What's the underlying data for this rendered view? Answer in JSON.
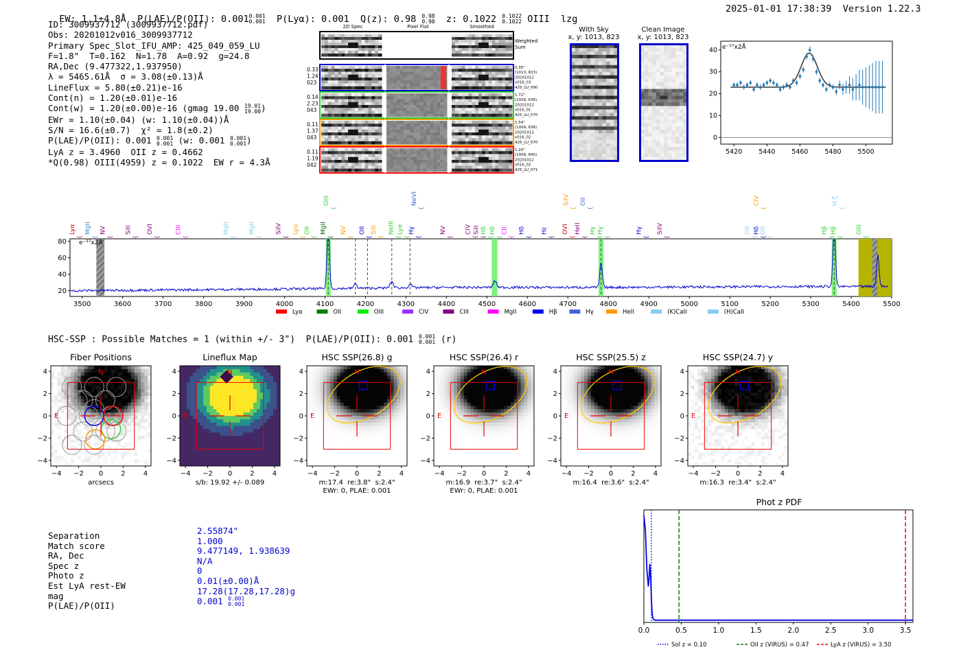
{
  "header": {
    "ew": "EW: 1.1±4.8Å",
    "plae": "P(LAE)/P(OII): 0.001",
    "plae_hi": "0.001",
    "plae_lo": "0.001",
    "plya": "P(Lyα): 0.001",
    "qz": "Q(z): 0.98",
    "qz_hi": "0.98",
    "qz_lo": "0.98",
    "z": "z: 0.1022",
    "z_hi": "0.1022",
    "z_lo": "0.1022",
    "line": "OIII",
    "flag": "lzg",
    "timestamp": "2025-01-01 17:38:39",
    "version": "Version 1.22.3"
  },
  "info": {
    "lines": [
      "ID: 3009937712 (3009937712.pdf)",
      "Obs: 20201012v016_3009937712",
      "Primary Spec_Slot_IFU_AMP: 425_049_059_LU",
      "F=1.8\"  T=0.162  N=1.78  A=0.92  g=24.8",
      "RA,Dec (9.477322,1.937950)",
      "λ = 5465.61Å  σ = 3.08(±0.13)Å",
      "LineFlux = 5.80(±0.21)e-16",
      "Cont(n) = 1.20(±0.01)e-16"
    ],
    "contw": "Cont(w) = 1.20(±0.00)e-16 (gmag 19.00",
    "contw_hi": "19.01",
    "contw_lo": "19.00",
    "contw_end": ")",
    "lines2": [
      "EWr = 1.10(±0.04) (w: 1.10(±0.04))Å",
      "S/N = 16.6(±0.7)  χ² = 1.8(±0.2)"
    ],
    "plae_a": "P(LAE)/P(OII): 0.001",
    "plae_a_hi": "0.001",
    "plae_a_lo": "0.001",
    "plae_b": "(w: 0.001",
    "plae_b_hi": "0.001",
    "plae_b_lo": "0.001",
    "plae_b_end": ")",
    "lines3": [
      "LyA z = 3.4960  OII z = 0.4662",
      "*Q(0.98) OIII(4959) z = 0.1022  EW r = 4.3Å"
    ]
  },
  "cutouts": {
    "col_titles": [
      "2D Spec",
      "Pixel Flat",
      "Smoothed"
    ],
    "weighted_sum": "Weighted Sum",
    "rows": [
      {
        "left": [
          "0.33",
          "1.24",
          "023"
        ],
        "right": [
          "0.35\"",
          "(1013, 823)",
          "20201012",
          "v016_03",
          "425_LU_090"
        ],
        "color": "#0000cc"
      },
      {
        "left": [
          "0.14",
          "2.23",
          "043"
        ],
        "right": [
          "1.72\"",
          "(1009, 636)",
          "20201012",
          "v016_01",
          "425_LU_070"
        ],
        "color": "#33cc33"
      },
      {
        "left": [
          "0.11",
          "1.37",
          "043"
        ],
        "right": [
          "1.54\"",
          "(1009, 636)",
          "20201012",
          "v016_02",
          "425_LU_070"
        ],
        "color": "#ff9900"
      },
      {
        "left": [
          "0.11",
          "1.19",
          "042"
        ],
        "right": [
          "1.20\"",
          "(1009, 645)",
          "20201012",
          "v016_02",
          "425_LU_071"
        ],
        "color": "#ff0000"
      }
    ]
  },
  "sky": {
    "with_sky_title": "With Sky",
    "with_sky_coords": "x, y: 1013, 823",
    "clean_title": "Clean Image",
    "clean_coords": "x, y: 1013, 823"
  },
  "zoom_chart": {
    "ylabel": "e⁻¹⁷x2Å",
    "chart_data": {
      "type": "line",
      "xlim": [
        5412,
        5516
      ],
      "ylim": [
        -3,
        44
      ],
      "xticks": [
        5420,
        5440,
        5460,
        5480,
        5500
      ],
      "yticks": [
        0,
        10,
        20,
        30,
        40
      ],
      "model": {
        "baseline": 23,
        "peak": 38.5,
        "center": 5465.6,
        "sigma": 3.08
      },
      "points_x": [
        5420,
        5422,
        5424,
        5426,
        5428,
        5430,
        5432,
        5434,
        5436,
        5438,
        5440,
        5442,
        5444,
        5446,
        5448,
        5450,
        5452,
        5454,
        5456,
        5458,
        5460,
        5462,
        5464,
        5466,
        5468,
        5470,
        5472,
        5474,
        5476,
        5478,
        5480,
        5482,
        5484,
        5486,
        5488,
        5490,
        5492,
        5494,
        5496,
        5498,
        5500,
        5502,
        5504,
        5506,
        5508,
        5510
      ],
      "points_y": [
        24,
        24,
        25,
        23,
        24,
        25,
        22,
        24,
        23,
        24,
        25,
        26,
        25,
        24,
        22,
        23,
        24,
        23,
        26,
        25,
        28,
        31,
        37,
        40,
        36,
        30,
        26,
        24,
        22,
        24,
        23,
        21,
        24,
        22,
        23,
        24,
        22,
        23,
        24,
        23,
        23,
        23,
        23,
        23,
        23,
        23
      ],
      "errors": [
        1.2,
        1.2,
        1.2,
        1.2,
        1.2,
        1.2,
        1.2,
        1.2,
        1.2,
        1.2,
        1.2,
        1.2,
        1.2,
        1.2,
        1.2,
        1.2,
        1.2,
        1.2,
        1.2,
        1.2,
        1.3,
        1.4,
        1.5,
        1.6,
        1.5,
        1.4,
        1.3,
        1.2,
        1.2,
        1.2,
        1.2,
        1.5,
        2,
        2.5,
        3,
        4,
        5,
        6,
        7,
        8,
        9,
        10,
        11,
        12,
        12,
        12
      ]
    }
  },
  "spectrum": {
    "ylabel": "e⁻¹⁷x2Å",
    "chart_data": {
      "type": "line",
      "xlim": [
        3470,
        5500
      ],
      "ylim": [
        13,
        83
      ],
      "xticks": [
        3500,
        3600,
        3700,
        3800,
        3900,
        4000,
        4100,
        4200,
        4300,
        4400,
        4500,
        4600,
        4700,
        4800,
        4900,
        5000,
        5100,
        5200,
        5300,
        5400,
        5500
      ],
      "yticks": [
        20,
        40,
        60,
        80
      ],
      "baseline": [
        [
          3470,
          20
        ],
        [
          4000,
          22
        ],
        [
          4400,
          24
        ],
        [
          4800,
          24
        ],
        [
          5200,
          25
        ],
        [
          5500,
          25
        ]
      ],
      "peaks": [
        {
          "x": 4108,
          "h": 80,
          "w": 3
        },
        {
          "x": 4520,
          "h": 8,
          "w": 4
        },
        {
          "x": 4782,
          "h": 30,
          "w": 3
        },
        {
          "x": 5358,
          "h": 80,
          "w": 3
        },
        {
          "x": 5466,
          "h": 38,
          "w": 3
        },
        {
          "x": 4265,
          "h": 8,
          "w": 4
        },
        {
          "x": 4175,
          "h": 5,
          "w": 4
        },
        {
          "x": 4310,
          "h": 4,
          "w": 4
        }
      ],
      "green_bands": [
        [
          4102,
          4114
        ],
        [
          4512,
          4526
        ],
        [
          4776,
          4788
        ],
        [
          5352,
          5364
        ]
      ],
      "dashed_lines": [
        4108,
        4175,
        4205,
        4265,
        4310,
        4782,
        5358
      ],
      "hatched": [
        [
          3535,
          3555
        ],
        [
          5452,
          5465
        ]
      ],
      "olive_band": [
        5418,
        5500
      ],
      "line_labels": [
        {
          "t": "Lyα",
          "x": 3480,
          "c": "#cc0000",
          "row": 1
        },
        {
          "t": "MgII",
          "x": 3518,
          "c": "#4488cc",
          "row": 1
        },
        {
          "t": "NV",
          "x": 3556,
          "c": "#800080",
          "row": 1
        },
        {
          "t": "SiII",
          "x": 3618,
          "c": "#800080",
          "row": 1
        },
        {
          "t": "OVI",
          "x": 3672,
          "c": "#800080",
          "row": 1
        },
        {
          "t": "CIII",
          "x": 3742,
          "c": "#ff00ff",
          "row": 1
        },
        {
          "t": "MgII",
          "x": 3860,
          "c": "#88ccee",
          "row": 1
        },
        {
          "t": "MgII",
          "x": 3924,
          "c": "#88ccee",
          "row": 1
        },
        {
          "t": "SiIV",
          "x": 3990,
          "c": "#800080",
          "row": 1
        },
        {
          "t": "Lyα",
          "x": 4032,
          "c": "#ff9900",
          "row": 1
        },
        {
          "t": "OII",
          "x": 4060,
          "c": "#33cc33",
          "row": 1
        },
        {
          "t": "MgII",
          "x": 4100,
          "c": "#006600",
          "row": 1
        },
        {
          "t": "OIII",
          "x": 4108,
          "c": "#33cc33",
          "row": 3
        },
        {
          "t": "NV",
          "x": 4150,
          "c": "#ff9900",
          "row": 1
        },
        {
          "t": "OII",
          "x": 4196,
          "c": "#0000cc",
          "row": 1
        },
        {
          "t": "SiII",
          "x": 4225,
          "c": "#ff9900",
          "row": 1
        },
        {
          "t": "NeIII",
          "x": 4268,
          "c": "#33cc33",
          "row": 1
        },
        {
          "t": "Lyα",
          "x": 4290,
          "c": "#33cc33",
          "row": 1
        },
        {
          "t": "Hγ",
          "x": 4318,
          "c": "#0000cc",
          "row": 1
        },
        {
          "t": "NeVI",
          "x": 4325,
          "c": "#4466cc",
          "row": 3
        },
        {
          "t": "NV",
          "x": 4396,
          "c": "#800080",
          "row": 1
        },
        {
          "t": "CIV",
          "x": 4458,
          "c": "#800080",
          "row": 1
        },
        {
          "t": "SiII",
          "x": 4478,
          "c": "#800080",
          "row": 1
        },
        {
          "t": "Hδ",
          "x": 4496,
          "c": "#33cc33",
          "row": 1
        },
        {
          "t": "Hδ",
          "x": 4518,
          "c": "#33cc33",
          "row": 1
        },
        {
          "t": "CII",
          "x": 4548,
          "c": "#ff00ff",
          "row": 1
        },
        {
          "t": "Hδ",
          "x": 4590,
          "c": "#0000cc",
          "row": 1
        },
        {
          "t": "Hε",
          "x": 4646,
          "c": "#0000cc",
          "row": 1
        },
        {
          "t": "OVI",
          "x": 4698,
          "c": "#cc0000",
          "row": 1
        },
        {
          "t": "HeII",
          "x": 4728,
          "c": "#800080",
          "row": 1
        },
        {
          "t": "SiIV",
          "x": 4700,
          "c": "#ff9900",
          "row": 3
        },
        {
          "t": "OII",
          "x": 4742,
          "c": "#4466cc",
          "row": 3
        },
        {
          "t": "Hγ",
          "x": 4766,
          "c": "#33cc33",
          "row": 1
        },
        {
          "t": "Hγ",
          "x": 4784,
          "c": "#33cc33",
          "row": 1
        },
        {
          "t": "Hγ",
          "x": 4880,
          "c": "#0000cc",
          "row": 1
        },
        {
          "t": "SiIV",
          "x": 4932,
          "c": "#800080",
          "row": 1
        },
        {
          "t": "OII",
          "x": 5148,
          "c": "#88ccee",
          "row": 1
        },
        {
          "t": "Hδ",
          "x": 5170,
          "c": "#0000cc",
          "row": 1
        },
        {
          "t": "OII",
          "x": 5186,
          "c": "#88ccee",
          "row": 1
        },
        {
          "t": "CIV",
          "x": 5170,
          "c": "#ff9900",
          "row": 3
        },
        {
          "t": "Hβ",
          "x": 5338,
          "c": "#33cc33",
          "row": 1
        },
        {
          "t": "Hβ",
          "x": 5360,
          "c": "#33cc33",
          "row": 1
        },
        {
          "t": "H ζ",
          "x": 5364,
          "c": "#88ccee",
          "row": 3
        },
        {
          "t": "OIII",
          "x": 5424,
          "c": "#33cc33",
          "row": 1
        }
      ],
      "legend": [
        {
          "t": "Lyα",
          "c": "#ff0000"
        },
        {
          "t": "OII",
          "c": "#008000"
        },
        {
          "t": "OIII",
          "c": "#00ee00"
        },
        {
          "t": "CIV",
          "c": "#9933ff"
        },
        {
          "t": "CIII",
          "c": "#800080"
        },
        {
          "t": "MgII",
          "c": "#ff00ff"
        },
        {
          "t": "Hβ",
          "c": "#0000ee"
        },
        {
          "t": "Hγ",
          "c": "#4466dd"
        },
        {
          "t": "HeII",
          "c": "#ff9900"
        },
        {
          "t": "(K)CaII",
          "c": "#88ccee"
        },
        {
          "t": "(H)CaII",
          "c": "#88ccee"
        }
      ]
    }
  },
  "hsc": {
    "header": "HSC-SSP : Possible Matches = 1 (within +/- 3\")  P(LAE)/P(OII): 0.001",
    "header_hi": "0.001",
    "header_lo": "0.001",
    "header_end": "(r)",
    "panels": [
      {
        "title": "Fiber Positions",
        "caption": [
          "arcsecs"
        ],
        "kind": "fiber"
      },
      {
        "title": "Lineflux Map",
        "caption": [
          "s/b: 19.92 +/- 0.089"
        ],
        "kind": "flux"
      },
      {
        "title": "HSC SSP(26.8) g",
        "caption": [
          "m:17.4  re:3.8\"  s:2.4\"",
          "EWr: 0, PLAE: 0.001"
        ],
        "kind": "hsc"
      },
      {
        "title": "HSC SSP(26.4) r",
        "caption": [
          "m:16.9  re:3.7\"  s:2.4\"",
          "EWr: 0, PLAE: 0.001"
        ],
        "kind": "hsc"
      },
      {
        "title": "HSC SSP(25.5) z",
        "caption": [
          "m:16.4  re:3.6\"  s:2.4\""
        ],
        "kind": "hsc"
      },
      {
        "title": "HSC SSP(24.7) y",
        "caption": [
          "m:16.3  re:3.4\"  s:2.4\""
        ],
        "kind": "hscnoisy"
      }
    ],
    "tick_labels": [
      "−4",
      "−2",
      "0",
      "2",
      "4"
    ],
    "ytick_labels": [
      "4",
      "2",
      "0",
      "−2",
      "−4"
    ],
    "n_label": "N",
    "e_label": "E"
  },
  "match": {
    "labels": [
      "Separation",
      "Match score",
      "RA, Dec",
      "Spec z",
      "Photo z",
      "Est LyA rest-EW",
      "mag"
    ],
    "values": [
      "2.55874\"",
      "1.000",
      "9.477149, 1.938639",
      "N/A",
      "0",
      "0.01(±0.00)Å",
      "17.28(17.28,17.28)g"
    ],
    "plae_label": "P(LAE)/P(OII)",
    "plae_value": "0.001",
    "plae_hi": "0.001",
    "plae_lo": "0.001"
  },
  "photz": {
    "title": "Phot z PDF",
    "chart_data": {
      "type": "line",
      "xlim": [
        0,
        3.6
      ],
      "ylim": [
        0,
        1
      ],
      "xticks": [
        0.0,
        0.5,
        1.0,
        1.5,
        2.0,
        2.5,
        3.0,
        3.5
      ],
      "xtick_labels": [
        "0.0",
        "0.5",
        "1.0",
        "1.5",
        "2.0",
        "2.5",
        "3.0",
        "3.5"
      ],
      "markers": [
        {
          "x": 0.1,
          "style": "dotted",
          "color": "#0000cc",
          "label": "Sol z = 0.10"
        },
        {
          "x": 0.47,
          "style": "dashed",
          "color": "#008000",
          "label": "OII z (VIRUS) = 0.47"
        },
        {
          "x": 3.5,
          "style": "dashed",
          "color": "#ff0000",
          "label": "LyA z (VIRUS) = 3.50"
        }
      ],
      "pdf_x": [
        0.0,
        0.02,
        0.04,
        0.06,
        0.07,
        0.08,
        0.09,
        0.1,
        0.11,
        0.12,
        0.13,
        0.15,
        0.2,
        0.5,
        1.0,
        2.0,
        3.0,
        3.6
      ],
      "pdf_y": [
        0.93,
        0.8,
        0.45,
        0.3,
        0.38,
        0.5,
        0.4,
        0.2,
        0.06,
        0.02,
        0.005,
        0.0,
        0.0,
        0.0,
        0.0,
        0.0,
        0.0,
        0.0
      ]
    }
  }
}
